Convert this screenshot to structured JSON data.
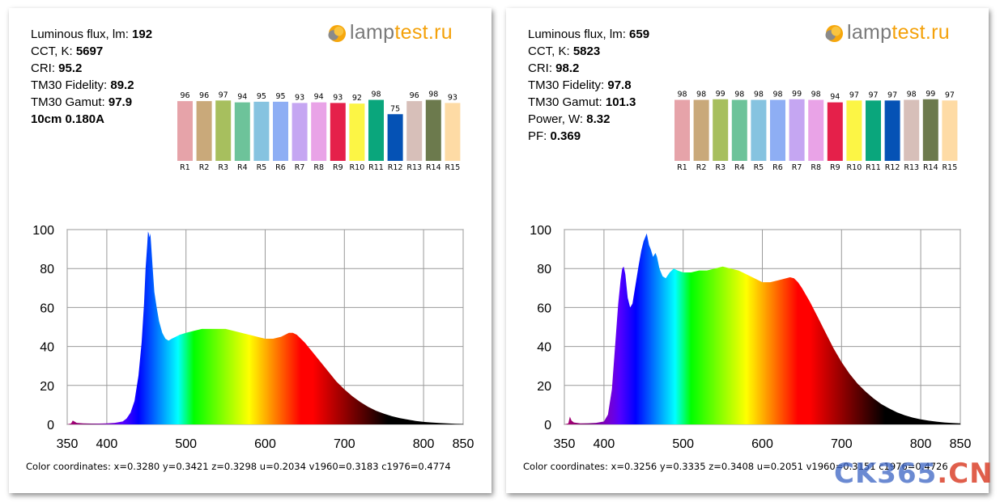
{
  "logo": {
    "lamp": "lamp",
    "test": "test.ru",
    "lamp_color": "#7a7a7a",
    "accent": "#f4a10a"
  },
  "watermark": {
    "part1": "CK365",
    "part2": ".CN"
  },
  "panels": [
    {
      "specs": [
        {
          "label": "Luminous flux, lm: ",
          "value": "192"
        },
        {
          "label": "CCT, K: ",
          "value": "5697"
        },
        {
          "label": "CRI: ",
          "value": "95.2"
        },
        {
          "label": "TM30 Fidelity: ",
          "value": "89.2"
        },
        {
          "label": "TM30 Gamut: ",
          "value": "97.9"
        },
        {
          "label": "",
          "value": "10cm 0.180A"
        }
      ],
      "coordinates": "Color coordinates: x=0.3280 y=0.3421 z=0.3298 u=0.2034 v1960=0.3183 c1976=0.4774"
    },
    {
      "specs": [
        {
          "label": "Luminous flux, lm: ",
          "value": "659"
        },
        {
          "label": "CCT, K: ",
          "value": "5823"
        },
        {
          "label": "CRI: ",
          "value": "98.2"
        },
        {
          "label": "TM30 Fidelity: ",
          "value": "97.8"
        },
        {
          "label": "TM30 Gamut: ",
          "value": "101.3"
        },
        {
          "label": "Power, W: ",
          "value": "8.32"
        },
        {
          "label": "PF: ",
          "value": "0.369"
        }
      ],
      "coordinates": "Color coordinates: x=0.3256 y=0.3335 z=0.3408 u=0.2051 v1960=0.3151 c1976=0.4726"
    }
  ],
  "chart_data": [
    {
      "type": "bar",
      "categories": [
        "R1",
        "R2",
        "R3",
        "R4",
        "R5",
        "R6",
        "R7",
        "R8",
        "R9",
        "R10",
        "R11",
        "R12",
        "R13",
        "R14",
        "R15"
      ],
      "values": [
        96,
        96,
        97,
        94,
        95,
        95,
        93,
        94,
        93,
        92,
        98,
        75,
        96,
        98,
        93
      ],
      "colors": [
        "#e6a3a9",
        "#c9a97a",
        "#a7bf5e",
        "#6dc39a",
        "#86c3e0",
        "#8eaef4",
        "#c5a6f2",
        "#e9a3e7",
        "#e5204a",
        "#fcf545",
        "#0aa67c",
        "#0552b5",
        "#d7bfb9",
        "#6c7a4d",
        "#fedba5"
      ],
      "ylim": [
        0,
        100
      ]
    },
    {
      "type": "bar",
      "categories": [
        "R1",
        "R2",
        "R3",
        "R4",
        "R5",
        "R6",
        "R7",
        "R8",
        "R9",
        "R10",
        "R11",
        "R12",
        "R13",
        "R14",
        "R15"
      ],
      "values": [
        98,
        98,
        99,
        98,
        98,
        98,
        99,
        98,
        94,
        97,
        97,
        97,
        98,
        99,
        97
      ],
      "colors": [
        "#e6a3a9",
        "#c9a97a",
        "#a7bf5e",
        "#6dc39a",
        "#86c3e0",
        "#8eaef4",
        "#c5a6f2",
        "#e9a3e7",
        "#e5204a",
        "#fcf545",
        "#0aa67c",
        "#0552b5",
        "#d7bfb9",
        "#6c7a4d",
        "#fedba5"
      ],
      "ylim": [
        0,
        100
      ]
    },
    {
      "type": "area",
      "x_ticks": [
        350,
        400,
        500,
        600,
        700,
        800,
        850
      ],
      "y_ticks": [
        0,
        20,
        40,
        60,
        80,
        100
      ],
      "xlim": [
        350,
        850
      ],
      "ylim": [
        0,
        100
      ],
      "points": [
        [
          350,
          0
        ],
        [
          355,
          0.5
        ],
        [
          357,
          2
        ],
        [
          359,
          1.5
        ],
        [
          362,
          0.8
        ],
        [
          370,
          0.5
        ],
        [
          380,
          0.4
        ],
        [
          390,
          0.4
        ],
        [
          400,
          0.5
        ],
        [
          410,
          0.8
        ],
        [
          420,
          1.5
        ],
        [
          425,
          3
        ],
        [
          430,
          6
        ],
        [
          435,
          12
        ],
        [
          440,
          25
        ],
        [
          444,
          42
        ],
        [
          447,
          62
        ],
        [
          449,
          80
        ],
        [
          451,
          92
        ],
        [
          452,
          99
        ],
        [
          453,
          98
        ],
        [
          454,
          96
        ],
        [
          455,
          98
        ],
        [
          456,
          92
        ],
        [
          458,
          80
        ],
        [
          460,
          68
        ],
        [
          463,
          60
        ],
        [
          466,
          53
        ],
        [
          470,
          47
        ],
        [
          474,
          44
        ],
        [
          478,
          43
        ],
        [
          482,
          44
        ],
        [
          487,
          45
        ],
        [
          492,
          46
        ],
        [
          500,
          47
        ],
        [
          510,
          48
        ],
        [
          520,
          49
        ],
        [
          530,
          49
        ],
        [
          540,
          49
        ],
        [
          550,
          49
        ],
        [
          560,
          48
        ],
        [
          570,
          47
        ],
        [
          580,
          46
        ],
        [
          590,
          45
        ],
        [
          600,
          44
        ],
        [
          610,
          44
        ],
        [
          620,
          45
        ],
        [
          630,
          47
        ],
        [
          635,
          47
        ],
        [
          640,
          46
        ],
        [
          650,
          42
        ],
        [
          660,
          37
        ],
        [
          670,
          32
        ],
        [
          680,
          27
        ],
        [
          690,
          22
        ],
        [
          700,
          18
        ],
        [
          710,
          14.5
        ],
        [
          720,
          11.5
        ],
        [
          730,
          9
        ],
        [
          740,
          7
        ],
        [
          750,
          5.5
        ],
        [
          760,
          4.2
        ],
        [
          770,
          3.2
        ],
        [
          780,
          2.5
        ],
        [
          790,
          1.8
        ],
        [
          800,
          1.3
        ],
        [
          810,
          1
        ],
        [
          820,
          0.7
        ],
        [
          830,
          0.5
        ],
        [
          840,
          0.3
        ],
        [
          850,
          0.2
        ]
      ]
    },
    {
      "type": "area",
      "x_ticks": [
        350,
        400,
        500,
        600,
        700,
        800,
        850
      ],
      "y_ticks": [
        0,
        20,
        40,
        60,
        80,
        100
      ],
      "xlim": [
        350,
        850
      ],
      "ylim": [
        0,
        100
      ],
      "points": [
        [
          350,
          0
        ],
        [
          355,
          0.5
        ],
        [
          357,
          4
        ],
        [
          359,
          2
        ],
        [
          362,
          1
        ],
        [
          370,
          0.5
        ],
        [
          380,
          0.6
        ],
        [
          390,
          0.8
        ],
        [
          400,
          1.5
        ],
        [
          405,
          5
        ],
        [
          410,
          18
        ],
        [
          414,
          40
        ],
        [
          418,
          62
        ],
        [
          421,
          74
        ],
        [
          423,
          80
        ],
        [
          425,
          81
        ],
        [
          427,
          77
        ],
        [
          430,
          65
        ],
        [
          433,
          60
        ],
        [
          436,
          62
        ],
        [
          440,
          72
        ],
        [
          444,
          82
        ],
        [
          447,
          89
        ],
        [
          450,
          94
        ],
        [
          452,
          96
        ],
        [
          454,
          98
        ],
        [
          455,
          96
        ],
        [
          457,
          92
        ],
        [
          459,
          90
        ],
        [
          462,
          86
        ],
        [
          465,
          88
        ],
        [
          467,
          86
        ],
        [
          470,
          80
        ],
        [
          474,
          76
        ],
        [
          478,
          75
        ],
        [
          483,
          78
        ],
        [
          488,
          80
        ],
        [
          493,
          79
        ],
        [
          500,
          78
        ],
        [
          510,
          78
        ],
        [
          520,
          79
        ],
        [
          530,
          79
        ],
        [
          540,
          80
        ],
        [
          550,
          81
        ],
        [
          560,
          80
        ],
        [
          570,
          79
        ],
        [
          580,
          77
        ],
        [
          590,
          75
        ],
        [
          600,
          73
        ],
        [
          610,
          73
        ],
        [
          620,
          74
        ],
        [
          630,
          75
        ],
        [
          635,
          75.5
        ],
        [
          640,
          75
        ],
        [
          645,
          73
        ],
        [
          650,
          70
        ],
        [
          660,
          63
        ],
        [
          670,
          55
        ],
        [
          680,
          47
        ],
        [
          690,
          39
        ],
        [
          700,
          32
        ],
        [
          710,
          26
        ],
        [
          720,
          21
        ],
        [
          730,
          17
        ],
        [
          740,
          13.5
        ],
        [
          750,
          10.5
        ],
        [
          760,
          8.2
        ],
        [
          770,
          6.2
        ],
        [
          780,
          4.7
        ],
        [
          790,
          3.5
        ],
        [
          800,
          2.6
        ],
        [
          810,
          1.9
        ],
        [
          820,
          1.4
        ],
        [
          830,
          1
        ],
        [
          840,
          0.7
        ],
        [
          850,
          0.5
        ]
      ]
    }
  ]
}
